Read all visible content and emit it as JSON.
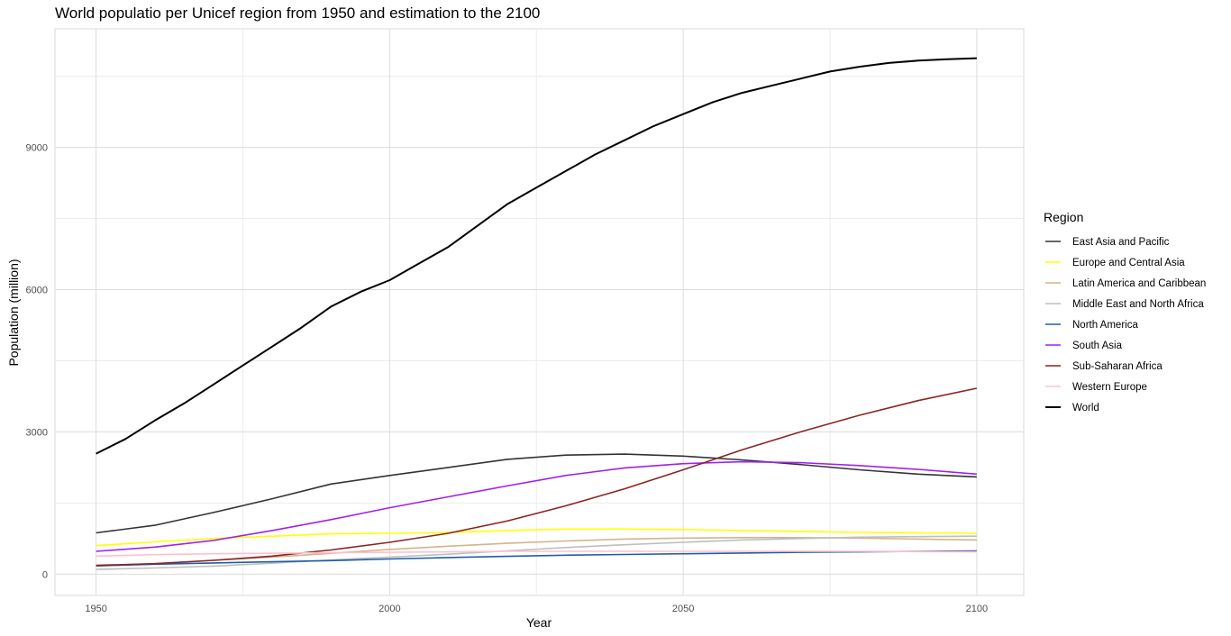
{
  "chart_data": {
    "type": "line",
    "title": "World populatio per Unicef region from 1950 and estimation to the 2100",
    "xlabel": "Year",
    "ylabel": "Population (million)",
    "xlim": [
      1943,
      2108
    ],
    "ylim": [
      -450,
      11500
    ],
    "xticks": [
      1950,
      2000,
      2050,
      2100
    ],
    "yticks": [
      0,
      3000,
      6000,
      9000
    ],
    "grid": true,
    "legend_title": "Region",
    "legend_position": "right",
    "series": [
      {
        "name": "East Asia and Pacific",
        "color": "#333333",
        "x": [
          1950,
          1960,
          1970,
          1980,
          1990,
          2000,
          2010,
          2020,
          2030,
          2040,
          2050,
          2060,
          2070,
          2080,
          2090,
          2100
        ],
        "y": [
          870,
          1030,
          1300,
          1590,
          1900,
          2080,
          2250,
          2420,
          2510,
          2530,
          2490,
          2410,
          2310,
          2200,
          2110,
          2050
        ]
      },
      {
        "name": "Europe and Central Asia",
        "color": "#ffff00",
        "x": [
          1950,
          1960,
          1970,
          1980,
          1990,
          2000,
          2010,
          2020,
          2030,
          2040,
          2050,
          2060,
          2070,
          2080,
          2090,
          2100
        ],
        "y": [
          600,
          680,
          750,
          800,
          850,
          860,
          880,
          920,
          950,
          950,
          940,
          920,
          900,
          880,
          870,
          860
        ]
      },
      {
        "name": "Latin America and Caribbean",
        "color": "#d2b48c",
        "x": [
          1950,
          1960,
          1970,
          1980,
          1990,
          2000,
          2010,
          2020,
          2030,
          2040,
          2050,
          2060,
          2070,
          2080,
          2090,
          2100
        ],
        "y": [
          170,
          220,
          290,
          360,
          440,
          520,
          590,
          650,
          700,
          740,
          760,
          770,
          770,
          760,
          740,
          720
        ]
      },
      {
        "name": "Middle East and North Africa",
        "color": "#bebebe",
        "x": [
          1950,
          1960,
          1970,
          1980,
          1990,
          2000,
          2010,
          2020,
          2030,
          2040,
          2050,
          2060,
          2070,
          2080,
          2090,
          2100
        ],
        "y": [
          100,
          130,
          170,
          230,
          300,
          360,
          420,
          490,
          560,
          620,
          670,
          720,
          750,
          780,
          790,
          800
        ]
      },
      {
        "name": "North America",
        "color": "#1f5fa8",
        "x": [
          1950,
          1960,
          1970,
          1980,
          1990,
          2000,
          2010,
          2020,
          2030,
          2040,
          2050,
          2060,
          2070,
          2080,
          2090,
          2100
        ],
        "y": [
          175,
          210,
          235,
          260,
          285,
          320,
          350,
          375,
          400,
          415,
          430,
          445,
          460,
          470,
          480,
          490
        ]
      },
      {
        "name": "South Asia",
        "color": "#a020f0",
        "x": [
          1950,
          1960,
          1970,
          1980,
          1990,
          2000,
          2010,
          2020,
          2030,
          2040,
          2050,
          2060,
          2070,
          2080,
          2090,
          2100
        ],
        "y": [
          480,
          570,
          710,
          920,
          1150,
          1400,
          1630,
          1860,
          2080,
          2240,
          2330,
          2370,
          2350,
          2290,
          2210,
          2110
        ]
      },
      {
        "name": "Sub-Saharan Africa",
        "color": "#8b2323",
        "x": [
          1950,
          1960,
          1970,
          1980,
          1990,
          2000,
          2010,
          2020,
          2030,
          2040,
          2050,
          2060,
          2070,
          2080,
          2090,
          2100
        ],
        "y": [
          185,
          220,
          290,
          380,
          510,
          670,
          860,
          1120,
          1440,
          1800,
          2200,
          2620,
          3000,
          3350,
          3660,
          3920
        ]
      },
      {
        "name": "Western Europe",
        "color": "#ffc0cb",
        "x": [
          1950,
          1960,
          1970,
          1980,
          1990,
          2000,
          2010,
          2020,
          2030,
          2040,
          2050,
          2060,
          2070,
          2080,
          2090,
          2100
        ],
        "y": [
          380,
          410,
          430,
          440,
          450,
          460,
          470,
          480,
          480,
          480,
          480,
          480,
          480,
          480,
          475,
          470
        ]
      },
      {
        "name": "World",
        "color": "#000000",
        "x": [
          1950,
          1955,
          1960,
          1965,
          1970,
          1975,
          1980,
          1985,
          1990,
          1995,
          2000,
          2005,
          2010,
          2015,
          2020,
          2025,
          2030,
          2035,
          2040,
          2045,
          2050,
          2055,
          2060,
          2065,
          2070,
          2075,
          2080,
          2085,
          2090,
          2095,
          2100
        ],
        "y": [
          2540,
          2850,
          3240,
          3600,
          4000,
          4400,
          4800,
          5200,
          5640,
          5950,
          6200,
          6550,
          6900,
          7350,
          7800,
          8150,
          8500,
          8850,
          9150,
          9450,
          9700,
          9950,
          10150,
          10300,
          10450,
          10600,
          10700,
          10780,
          10830,
          10860,
          10880
        ]
      }
    ]
  }
}
